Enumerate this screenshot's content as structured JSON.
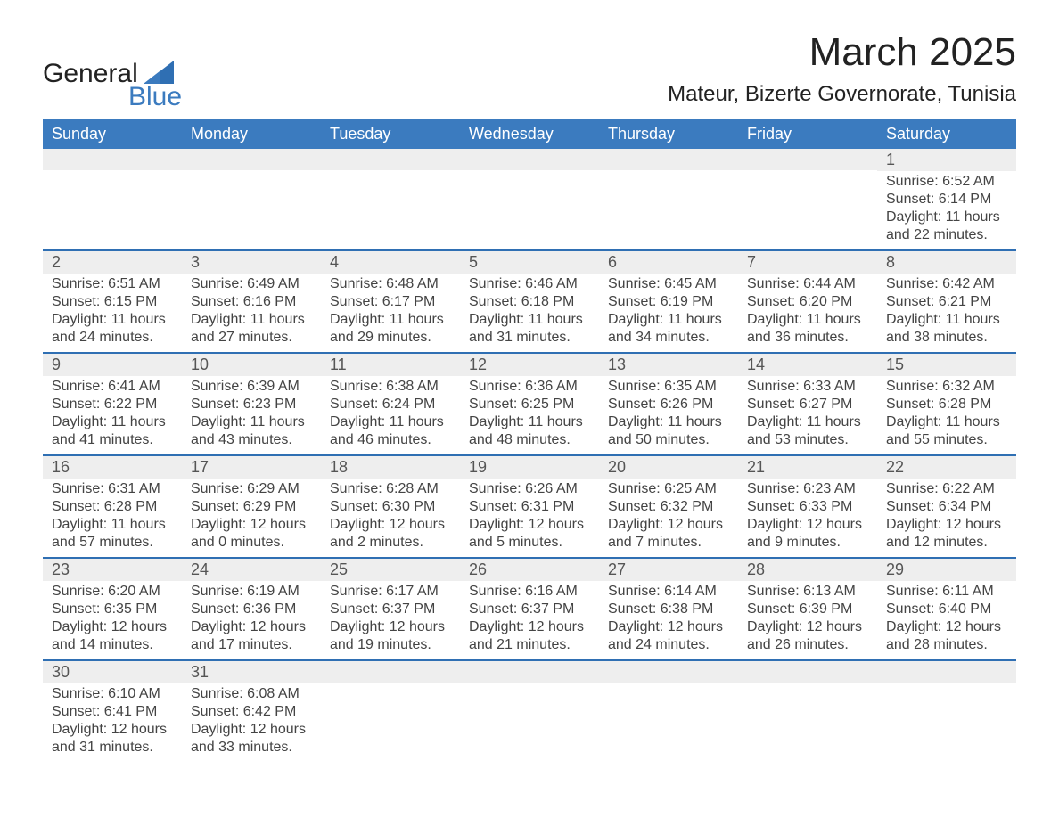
{
  "header": {
    "logo_line1": "General",
    "logo_line2": "Blue",
    "month_title": "March 2025",
    "location": "Mateur, Bizerte Governorate, Tunisia"
  },
  "style": {
    "header_blue": "#3b7bbf",
    "divider_blue": "#2f6fb3",
    "daynum_bg": "#eeeeee",
    "text_color": "#333333",
    "page_bg": "#ffffff",
    "title_fontsize_pt": 33,
    "location_fontsize_pt": 18,
    "weekday_fontsize_pt": 14,
    "body_fontsize_pt": 12,
    "font_family": "Arial"
  },
  "calendar": {
    "weekdays": [
      "Sunday",
      "Monday",
      "Tuesday",
      "Wednesday",
      "Thursday",
      "Friday",
      "Saturday"
    ],
    "weeks": [
      [
        null,
        null,
        null,
        null,
        null,
        null,
        {
          "n": "1",
          "sunrise": "6:52 AM",
          "sunset": "6:14 PM",
          "daylight": "11 hours and 22 minutes."
        }
      ],
      [
        {
          "n": "2",
          "sunrise": "6:51 AM",
          "sunset": "6:15 PM",
          "daylight": "11 hours and 24 minutes."
        },
        {
          "n": "3",
          "sunrise": "6:49 AM",
          "sunset": "6:16 PM",
          "daylight": "11 hours and 27 minutes."
        },
        {
          "n": "4",
          "sunrise": "6:48 AM",
          "sunset": "6:17 PM",
          "daylight": "11 hours and 29 minutes."
        },
        {
          "n": "5",
          "sunrise": "6:46 AM",
          "sunset": "6:18 PM",
          "daylight": "11 hours and 31 minutes."
        },
        {
          "n": "6",
          "sunrise": "6:45 AM",
          "sunset": "6:19 PM",
          "daylight": "11 hours and 34 minutes."
        },
        {
          "n": "7",
          "sunrise": "6:44 AM",
          "sunset": "6:20 PM",
          "daylight": "11 hours and 36 minutes."
        },
        {
          "n": "8",
          "sunrise": "6:42 AM",
          "sunset": "6:21 PM",
          "daylight": "11 hours and 38 minutes."
        }
      ],
      [
        {
          "n": "9",
          "sunrise": "6:41 AM",
          "sunset": "6:22 PM",
          "daylight": "11 hours and 41 minutes."
        },
        {
          "n": "10",
          "sunrise": "6:39 AM",
          "sunset": "6:23 PM",
          "daylight": "11 hours and 43 minutes."
        },
        {
          "n": "11",
          "sunrise": "6:38 AM",
          "sunset": "6:24 PM",
          "daylight": "11 hours and 46 minutes."
        },
        {
          "n": "12",
          "sunrise": "6:36 AM",
          "sunset": "6:25 PM",
          "daylight": "11 hours and 48 minutes."
        },
        {
          "n": "13",
          "sunrise": "6:35 AM",
          "sunset": "6:26 PM",
          "daylight": "11 hours and 50 minutes."
        },
        {
          "n": "14",
          "sunrise": "6:33 AM",
          "sunset": "6:27 PM",
          "daylight": "11 hours and 53 minutes."
        },
        {
          "n": "15",
          "sunrise": "6:32 AM",
          "sunset": "6:28 PM",
          "daylight": "11 hours and 55 minutes."
        }
      ],
      [
        {
          "n": "16",
          "sunrise": "6:31 AM",
          "sunset": "6:28 PM",
          "daylight": "11 hours and 57 minutes."
        },
        {
          "n": "17",
          "sunrise": "6:29 AM",
          "sunset": "6:29 PM",
          "daylight": "12 hours and 0 minutes."
        },
        {
          "n": "18",
          "sunrise": "6:28 AM",
          "sunset": "6:30 PM",
          "daylight": "12 hours and 2 minutes."
        },
        {
          "n": "19",
          "sunrise": "6:26 AM",
          "sunset": "6:31 PM",
          "daylight": "12 hours and 5 minutes."
        },
        {
          "n": "20",
          "sunrise": "6:25 AM",
          "sunset": "6:32 PM",
          "daylight": "12 hours and 7 minutes."
        },
        {
          "n": "21",
          "sunrise": "6:23 AM",
          "sunset": "6:33 PM",
          "daylight": "12 hours and 9 minutes."
        },
        {
          "n": "22",
          "sunrise": "6:22 AM",
          "sunset": "6:34 PM",
          "daylight": "12 hours and 12 minutes."
        }
      ],
      [
        {
          "n": "23",
          "sunrise": "6:20 AM",
          "sunset": "6:35 PM",
          "daylight": "12 hours and 14 minutes."
        },
        {
          "n": "24",
          "sunrise": "6:19 AM",
          "sunset": "6:36 PM",
          "daylight": "12 hours and 17 minutes."
        },
        {
          "n": "25",
          "sunrise": "6:17 AM",
          "sunset": "6:37 PM",
          "daylight": "12 hours and 19 minutes."
        },
        {
          "n": "26",
          "sunrise": "6:16 AM",
          "sunset": "6:37 PM",
          "daylight": "12 hours and 21 minutes."
        },
        {
          "n": "27",
          "sunrise": "6:14 AM",
          "sunset": "6:38 PM",
          "daylight": "12 hours and 24 minutes."
        },
        {
          "n": "28",
          "sunrise": "6:13 AM",
          "sunset": "6:39 PM",
          "daylight": "12 hours and 26 minutes."
        },
        {
          "n": "29",
          "sunrise": "6:11 AM",
          "sunset": "6:40 PM",
          "daylight": "12 hours and 28 minutes."
        }
      ],
      [
        {
          "n": "30",
          "sunrise": "6:10 AM",
          "sunset": "6:41 PM",
          "daylight": "12 hours and 31 minutes."
        },
        {
          "n": "31",
          "sunrise": "6:08 AM",
          "sunset": "6:42 PM",
          "daylight": "12 hours and 33 minutes."
        },
        null,
        null,
        null,
        null,
        null
      ]
    ],
    "labels": {
      "sunrise": "Sunrise:",
      "sunset": "Sunset:",
      "daylight": "Daylight:"
    }
  }
}
